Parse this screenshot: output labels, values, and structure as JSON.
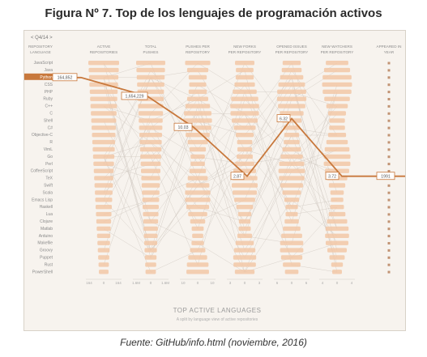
{
  "figure_title": "Figura Nº 7. Top de los lenguajes de programación activos",
  "source_note": "Fuente: GitHub/info.html (noviembre, 2016)",
  "chart_data": {
    "type": "parallel-coordinates",
    "title": "TOP ACTIVE LANGUAGES",
    "subtitle": "A split by language view of active repositories",
    "period_selector": "< Q4/14 >",
    "columns": [
      {
        "label": "REPOSITORY LANGUAGE"
      },
      {
        "label": "ACTIVE REPOSITORIES"
      },
      {
        "label": "TOTAL PUSHES"
      },
      {
        "label": "PUSHES PER REPOSITORY"
      },
      {
        "label": "NEW FORKS PER REPOSITORY"
      },
      {
        "label": "OPENED ISSUES PER REPOSITORY"
      },
      {
        "label": "NEW WATCHERS PER REPOSITORY"
      },
      {
        "label": "APPEARED IN YEAR"
      }
    ],
    "languages": [
      "JavaScript",
      "Java",
      "Python",
      "CSS",
      "PHP",
      "Ruby",
      "C++",
      "C",
      "Shell",
      "C#",
      "Objective-C",
      "R",
      "VimL",
      "Go",
      "Perl",
      "CoffeeScript",
      "TeX",
      "Swift",
      "Scala",
      "Emacs Lisp",
      "Haskell",
      "Lua",
      "Clojure",
      "Matlab",
      "Arduino",
      "Makefile",
      "Groovy",
      "Puppet",
      "Rust",
      "PowerShell"
    ],
    "highlighted": {
      "language": "Python",
      "values": [
        "164,852",
        "1,654,229",
        "10.03",
        "2.87",
        "6.32",
        "3.72",
        "1991"
      ]
    },
    "axis_ticks": [
      [
        "164",
        "0",
        "164"
      ],
      [
        "1.6M",
        "0",
        "1.6M"
      ],
      [
        "10",
        "0",
        "10"
      ],
      [
        "3",
        "0",
        "3"
      ],
      [
        "6",
        "0",
        "6"
      ],
      [
        "4",
        "0",
        "4"
      ]
    ]
  },
  "colors": {
    "highlight": "#c8783c",
    "bars": "#f2c7a6",
    "background": "#f7f3ee",
    "muted_text": "#8a8a8a",
    "lines": "#cfc8c0",
    "markers": "#a96a3e"
  }
}
